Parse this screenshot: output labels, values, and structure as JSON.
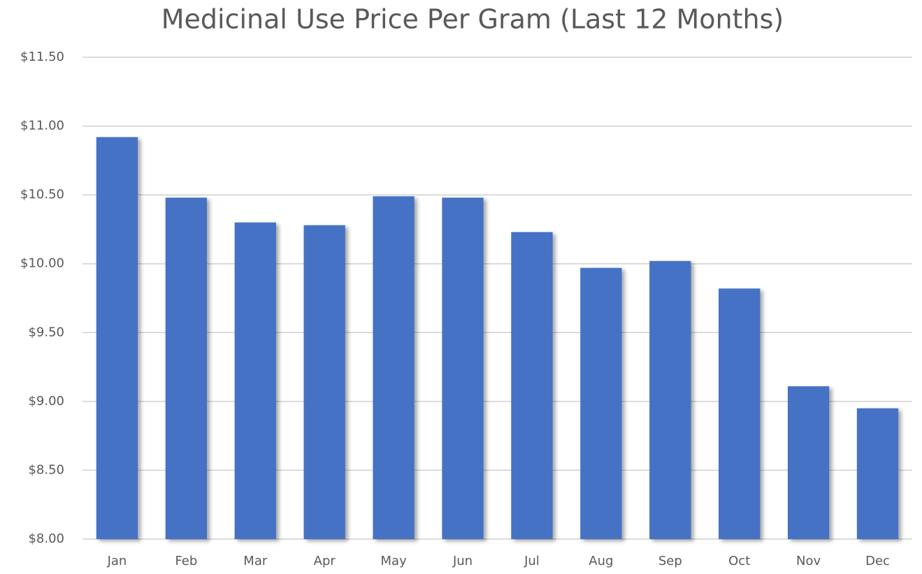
{
  "chart_data": {
    "type": "bar",
    "title": "Medicinal Use Price Per Gram (Last 12 Months)",
    "categories": [
      "Jan",
      "Feb",
      "Mar",
      "Apr",
      "May",
      "Jun",
      "Jul",
      "Aug",
      "Sep",
      "Oct",
      "Nov",
      "Dec"
    ],
    "values": [
      10.92,
      10.48,
      10.3,
      10.28,
      10.49,
      10.48,
      10.23,
      9.97,
      10.02,
      9.82,
      9.11,
      8.95
    ],
    "color": "#4472c4",
    "ylim": [
      8,
      11.5
    ],
    "yticks": [
      {
        "value": 8,
        "label": "$8.00"
      },
      {
        "value": 8.5,
        "label": "$8.50"
      },
      {
        "value": 9,
        "label": "$9.00"
      },
      {
        "value": 9.5,
        "label": "$9.50"
      },
      {
        "value": 10,
        "label": "$10.00"
      },
      {
        "value": 10.5,
        "label": "$10.50"
      },
      {
        "value": 11,
        "label": "$11.00"
      },
      {
        "value": 11.5,
        "label": "$11.50"
      }
    ],
    "grid": true
  }
}
